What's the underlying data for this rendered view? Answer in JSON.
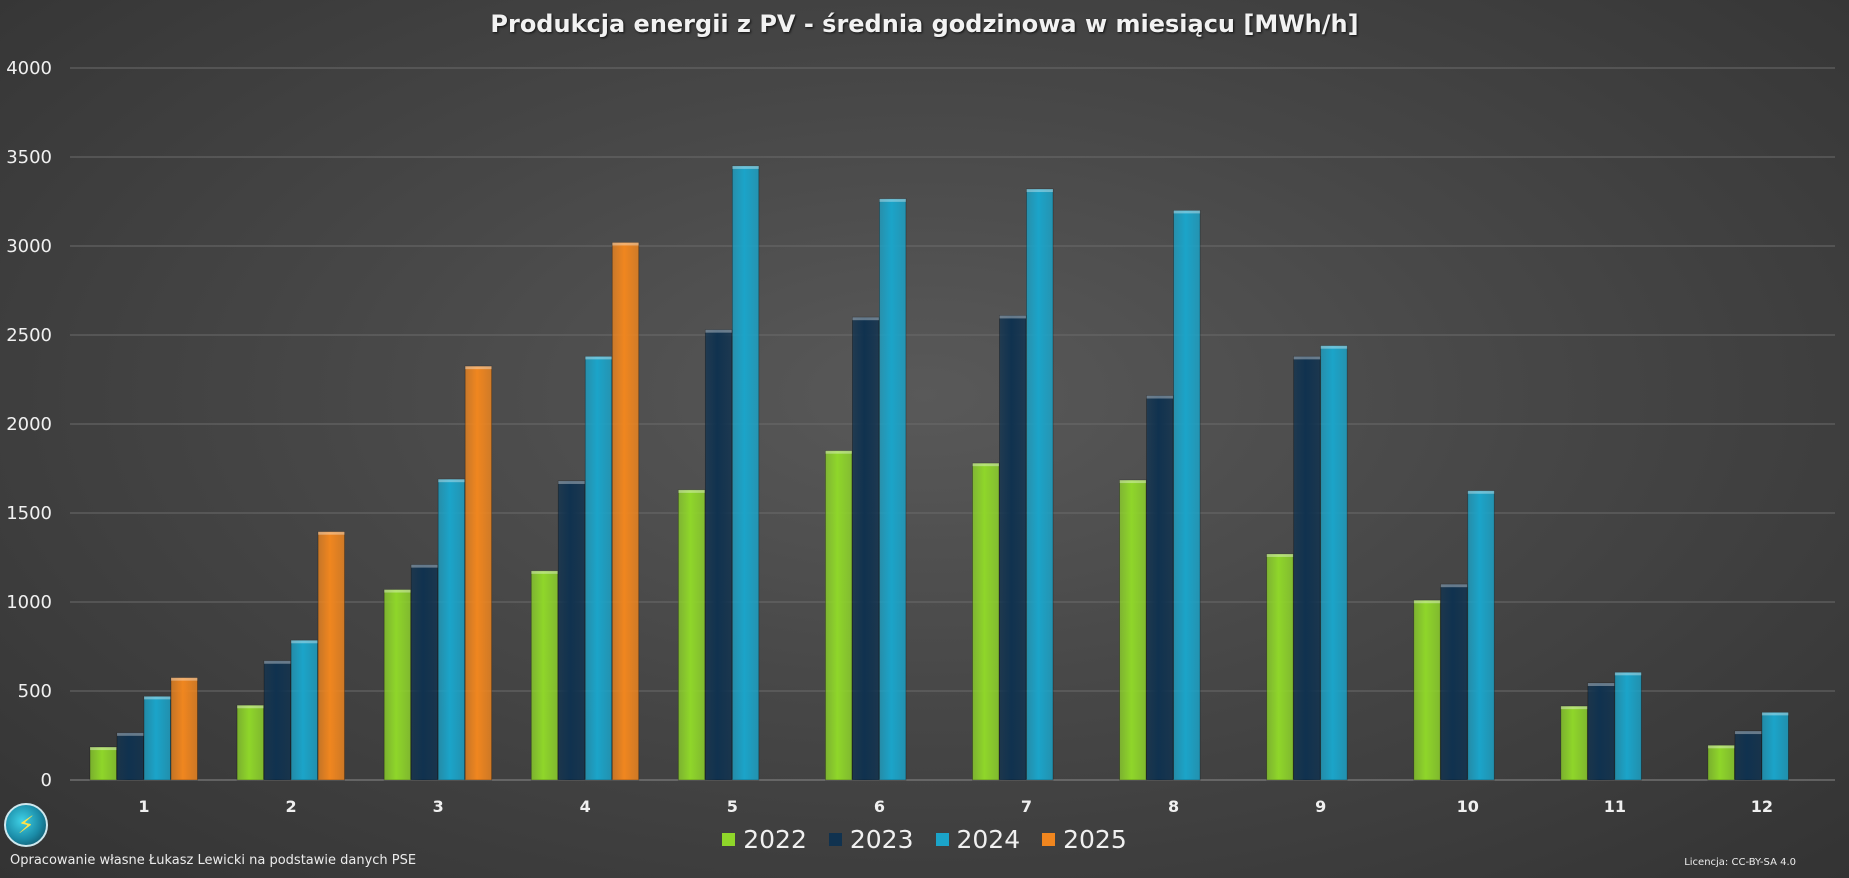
{
  "chart_data": {
    "type": "bar",
    "title": "Produkcja energii z PV - średnia godzinowa w miesiącu [MWh/h]",
    "xlabel": "",
    "ylabel": "",
    "categories": [
      "1",
      "2",
      "3",
      "4",
      "5",
      "6",
      "7",
      "8",
      "9",
      "10",
      "11",
      "12"
    ],
    "ylim": [
      0,
      4000
    ],
    "yticks": [
      "0",
      "500",
      "1000",
      "1500",
      "2000",
      "2500",
      "3000",
      "3500",
      "4000"
    ],
    "grid": true,
    "legend_position": "bottom",
    "series": [
      {
        "name": "2022",
        "color": "#8fd62a",
        "values": [
          185,
          420,
          1070,
          1175,
          1630,
          1850,
          1780,
          1685,
          1270,
          1010,
          415,
          195
        ]
      },
      {
        "name": "2023",
        "color": "#10324f",
        "values": [
          265,
          670,
          1210,
          1680,
          2530,
          2600,
          2610,
          2160,
          2380,
          1100,
          545,
          275
        ]
      },
      {
        "name": "2024",
        "color": "#1ba4c9",
        "values": [
          470,
          785,
          1690,
          2380,
          3450,
          3265,
          3320,
          3200,
          2440,
          1625,
          605,
          380
        ]
      },
      {
        "name": "2025",
        "color": "#f0861f",
        "values": [
          575,
          1395,
          2325,
          3020,
          null,
          null,
          null,
          null,
          null,
          null,
          null,
          null
        ]
      }
    ]
  },
  "logo_icon": "lightning-bolt-icon",
  "footer": {
    "source": "Opracowanie własne Łukasz Lewicki na podstawie danych PSE",
    "license": "Licencja: CC-BY-SA 4.0"
  }
}
